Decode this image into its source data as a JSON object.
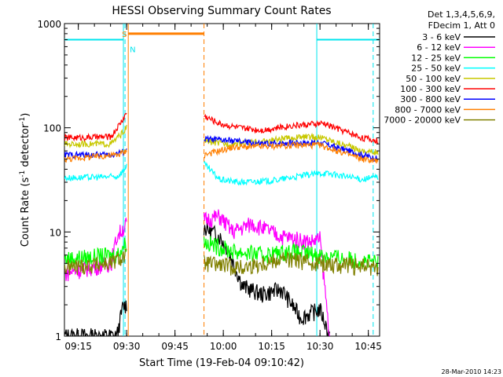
{
  "chart_data": {
    "type": "line",
    "title": "HESSI Observing Summary Count Rates",
    "xlabel": "Start Time (19-Feb-04 09:10:42)",
    "ylabel_main": "Count Rate (s",
    "ylabel_sup1": "-1",
    "ylabel_mid": " detector",
    "ylabel_sup2": "-1",
    "ylabel_end": ")",
    "yscale": "log",
    "ylim": [
      1,
      1000
    ],
    "xlim": [
      "09:10:42",
      "10:48:30"
    ],
    "x_ticks": [
      "09:15",
      "09:30",
      "09:45",
      "10:00",
      "10:15",
      "10:30",
      "10:45"
    ],
    "y_ticks": [
      "1",
      "10",
      "100",
      "1000"
    ],
    "legend_header": [
      "Det 1,3,4,5,6,9,",
      "FDecim 1, Att 0"
    ],
    "footer_date": "28-Mar-2010 14:23",
    "colors": {
      "day_night": "#00e5ee",
      "saa": "#ff7f00",
      "night_label_color": "#00e5ee",
      "saa_label_color": "#ff7f00"
    },
    "markers": {
      "saa_label": "S",
      "night_label": "N",
      "night_interval_ends": [
        "09:29:00",
        "10:29:00"
      ],
      "night_dashed_times": [
        "09:29:30",
        "10:46:30"
      ],
      "saa_start": "09:30:30",
      "saa_end": "09:54:00"
    },
    "series": [
      {
        "name": "3 - 6 keV",
        "color": "#000000",
        "pre": [
          [
            9.18,
            1
          ],
          [
            9.45,
            1
          ],
          [
            9.48,
            1.9
          ],
          [
            9.5,
            2
          ]
        ],
        "post": [
          [
            9.9,
            11
          ],
          [
            9.98,
            9
          ],
          [
            10.02,
            7
          ],
          [
            10.1,
            3
          ],
          [
            10.2,
            2.5
          ],
          [
            10.3,
            2.8
          ],
          [
            10.4,
            1.5
          ],
          [
            10.5,
            1.8
          ],
          [
            10.55,
            1
          ]
        ]
      },
      {
        "name": "6 - 12 keV",
        "color": "#ff00ff",
        "pre": [
          [
            9.18,
            4
          ],
          [
            9.42,
            5
          ],
          [
            9.45,
            9
          ],
          [
            9.5,
            12
          ]
        ],
        "post": [
          [
            9.9,
            13
          ],
          [
            9.98,
            14
          ],
          [
            10.05,
            10
          ],
          [
            10.15,
            12
          ],
          [
            10.3,
            9
          ],
          [
            10.45,
            8
          ],
          [
            10.5,
            8.5
          ],
          [
            10.55,
            1
          ]
        ]
      },
      {
        "name": "12 - 25 keV",
        "color": "#00ff00",
        "pre": [
          [
            9.18,
            5.5
          ],
          [
            9.45,
            6
          ],
          [
            9.5,
            8
          ]
        ],
        "post": [
          [
            9.9,
            8
          ],
          [
            10.05,
            6.5
          ],
          [
            10.2,
            6
          ],
          [
            10.35,
            6.5
          ],
          [
            10.5,
            6
          ],
          [
            10.8,
            5
          ]
        ]
      },
      {
        "name": "25 - 50 keV",
        "color": "#00ffff",
        "pre": [
          [
            9.18,
            33
          ],
          [
            9.45,
            34
          ],
          [
            9.49,
            40
          ],
          [
            9.5,
            45
          ]
        ],
        "post": [
          [
            9.9,
            45
          ],
          [
            9.98,
            32
          ],
          [
            10.08,
            30
          ],
          [
            10.25,
            31
          ],
          [
            10.42,
            35
          ],
          [
            10.52,
            37
          ],
          [
            10.72,
            32
          ],
          [
            10.8,
            34
          ]
        ]
      },
      {
        "name": "50 - 100 keV",
        "color": "#c8c800",
        "pre": [
          [
            9.18,
            70
          ],
          [
            9.42,
            70
          ],
          [
            9.48,
            90
          ],
          [
            9.5,
            100
          ]
        ],
        "post": [
          [
            9.9,
            75
          ],
          [
            10.0,
            70
          ],
          [
            10.15,
            72
          ],
          [
            10.3,
            78
          ],
          [
            10.42,
            82
          ],
          [
            10.52,
            80
          ],
          [
            10.72,
            60
          ],
          [
            10.8,
            58
          ]
        ]
      },
      {
        "name": "100 - 300 keV",
        "color": "#ff0000",
        "pre": [
          [
            9.18,
            80
          ],
          [
            9.42,
            82
          ],
          [
            9.48,
            120
          ],
          [
            9.5,
            140
          ]
        ],
        "post": [
          [
            9.9,
            130
          ],
          [
            9.98,
            110
          ],
          [
            10.08,
            100
          ],
          [
            10.2,
            95
          ],
          [
            10.35,
            105
          ],
          [
            10.52,
            110
          ],
          [
            10.72,
            80
          ],
          [
            10.8,
            75
          ]
        ]
      },
      {
        "name": "300 - 800 keV",
        "color": "#0000ff",
        "pre": [
          [
            9.18,
            55
          ],
          [
            9.42,
            55
          ],
          [
            9.5,
            60
          ]
        ],
        "post": [
          [
            9.9,
            78
          ],
          [
            10.05,
            75
          ],
          [
            10.2,
            70
          ],
          [
            10.35,
            72
          ],
          [
            10.5,
            72
          ],
          [
            10.72,
            55
          ],
          [
            10.8,
            50
          ]
        ]
      },
      {
        "name": "800 - 7000 keV",
        "color": "#ff7f00",
        "pre": [
          [
            9.18,
            50
          ],
          [
            9.45,
            55
          ],
          [
            9.5,
            60
          ]
        ],
        "post": [
          [
            9.9,
            55
          ],
          [
            10.05,
            65
          ],
          [
            10.2,
            66
          ],
          [
            10.35,
            68
          ],
          [
            10.5,
            68
          ],
          [
            10.72,
            50
          ],
          [
            10.8,
            48
          ]
        ]
      },
      {
        "name": "7000 - 20000 keV",
        "color": "#808000",
        "pre": [
          [
            9.18,
            4.5
          ],
          [
            9.42,
            5
          ],
          [
            9.5,
            6
          ]
        ],
        "post": [
          [
            9.9,
            5
          ],
          [
            10.1,
            4.5
          ],
          [
            10.3,
            5.5
          ],
          [
            10.5,
            5
          ],
          [
            10.8,
            4.5
          ]
        ]
      }
    ]
  }
}
